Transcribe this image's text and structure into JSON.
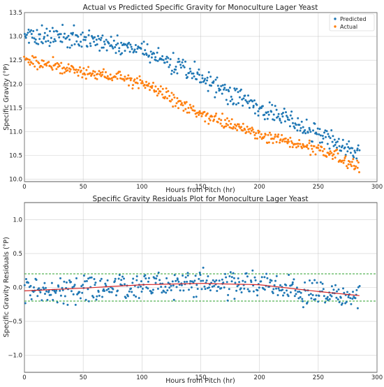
{
  "chart_data": [
    {
      "type": "scatter",
      "title": "Actual vs Predicted Specific Gravity for Monoculture Lager Yeast",
      "xlabel": "Hours from Pitch (hr)",
      "ylabel": "Specific Gravity (°P)",
      "xlim": [
        0,
        300
      ],
      "ylim": [
        9.95,
        13.5
      ],
      "xticks": [
        0,
        50,
        100,
        150,
        200,
        250,
        300
      ],
      "yticks": [
        10.0,
        10.5,
        11.0,
        11.5,
        12.0,
        12.5,
        13.0,
        13.5
      ],
      "xtick_labels": [
        "0",
        "50",
        "100",
        "150",
        "200",
        "250",
        "300"
      ],
      "ytick_labels": [
        "10.0",
        "10.5",
        "11.0",
        "11.5",
        "12.0",
        "12.5",
        "13.0",
        "13.5"
      ],
      "grid": true,
      "legend": "top-right",
      "point_count": 420,
      "x_range": [
        0,
        285
      ],
      "series": [
        {
          "name": "Predicted",
          "color": "#1f77b4",
          "trend": {
            "x": [
              0,
              50,
              100,
              150,
              200,
              250,
              285
            ],
            "y": [
              13.05,
              12.95,
              12.7,
              12.15,
              11.5,
              10.95,
              10.55
            ]
          },
          "noise": 0.18
        },
        {
          "name": "Actual",
          "color": "#ff7f0e",
          "trend": {
            "x": [
              0,
              50,
              100,
              150,
              200,
              250,
              285
            ],
            "y": [
              12.5,
              12.25,
              12.05,
              11.35,
              10.95,
              10.6,
              10.3
            ]
          },
          "noise": 0.12
        }
      ]
    },
    {
      "type": "scatter",
      "title": "Specific Gravity Residuals Plot for Monoculture Lager Yeast",
      "xlabel": "Hours from Pitch (hr)",
      "ylabel": "Specific Gravity Residuals (°P)",
      "xlim": [
        0,
        300
      ],
      "ylim": [
        -1.25,
        1.25
      ],
      "xticks": [
        0,
        50,
        100,
        150,
        200,
        250,
        300
      ],
      "yticks": [
        -1.0,
        -0.5,
        0.0,
        0.5,
        1.0
      ],
      "xtick_labels": [
        "0",
        "50",
        "100",
        "150",
        "200",
        "250",
        "300"
      ],
      "ytick_labels": [
        "−1.0",
        "−0.5",
        "0.0",
        "0.5",
        "1.0"
      ],
      "grid": true,
      "point_count": 420,
      "x_range": [
        0,
        285
      ],
      "point_color": "#1f77b4",
      "fit_color": "#d62728",
      "band_color": "#2ca02c",
      "bands": [
        0.2,
        -0.2
      ],
      "fit": {
        "x": [
          0,
          50,
          100,
          150,
          200,
          250,
          285
        ],
        "y": [
          -0.05,
          -0.01,
          0.04,
          0.06,
          0.04,
          -0.06,
          -0.12
        ]
      },
      "noise": 0.16
    }
  ]
}
